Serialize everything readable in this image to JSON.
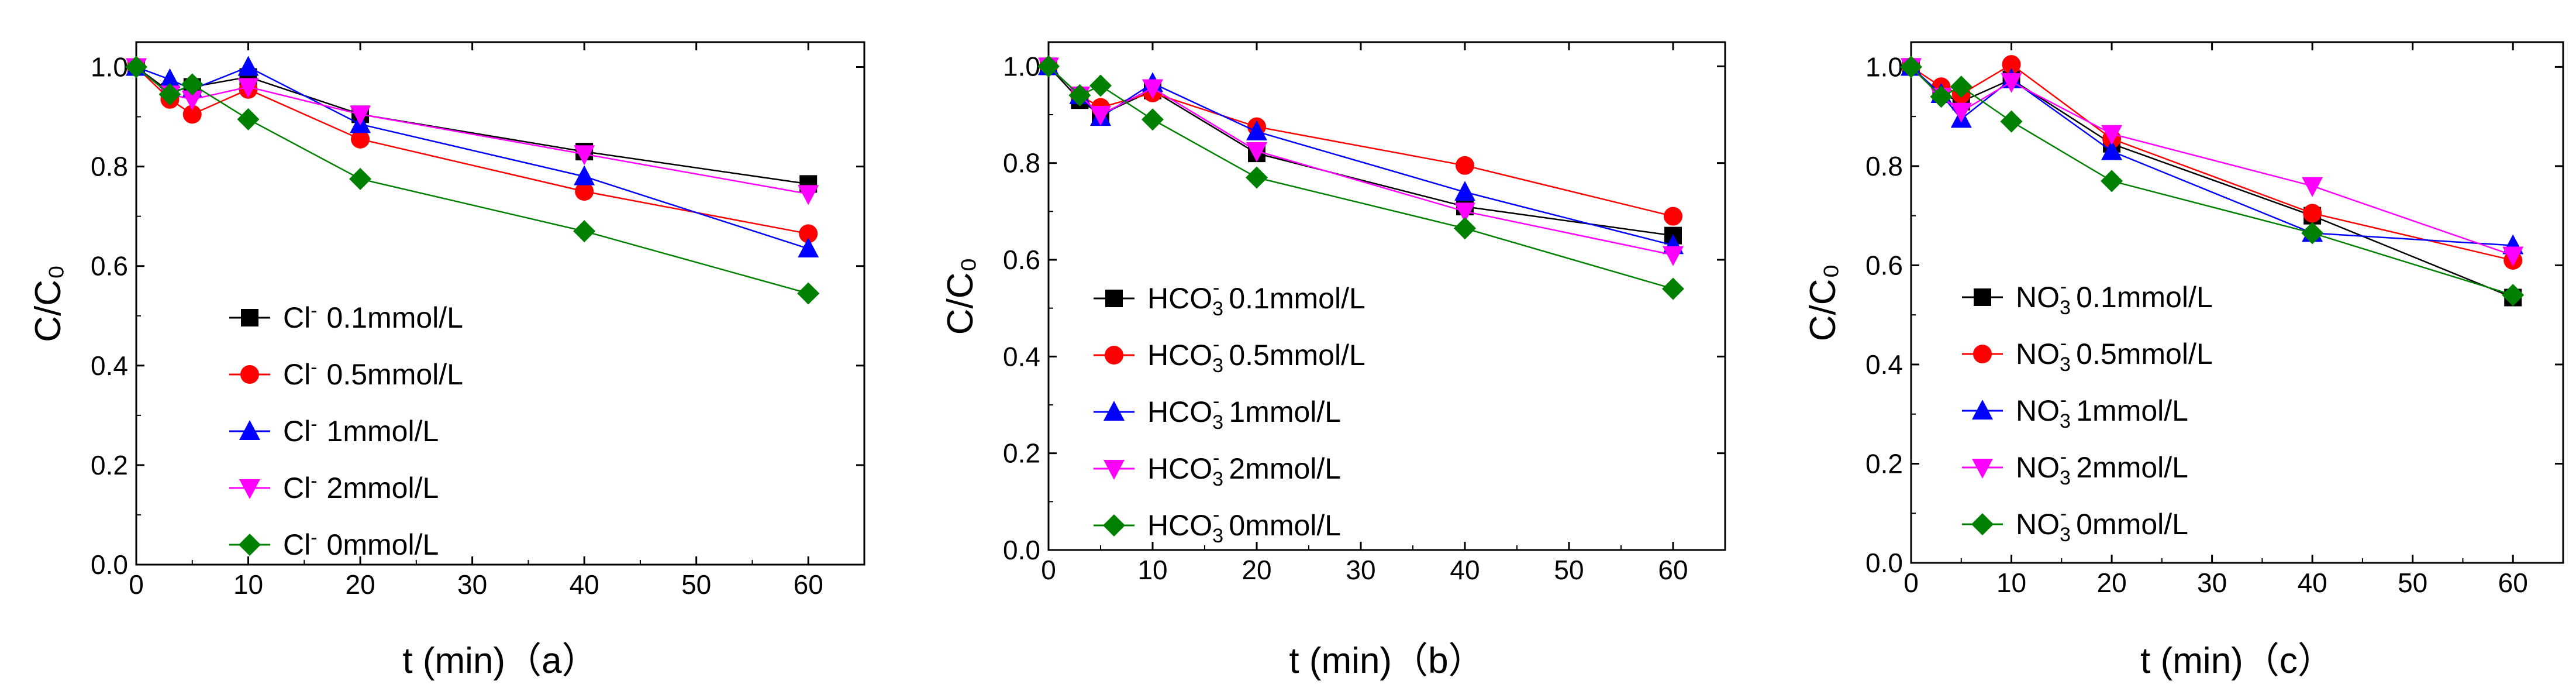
{
  "chart_data": [
    {
      "type": "line",
      "panel": "a",
      "xlabel": "t (min)（a）",
      "ylabel": "C/C₀",
      "xlim": [
        0,
        65
      ],
      "ylim": [
        0.0,
        1.05
      ],
      "xticks": [
        0,
        10,
        20,
        30,
        40,
        50,
        60
      ],
      "yticks": [
        0.0,
        0.2,
        0.4,
        0.6,
        0.8,
        1.0
      ],
      "xtick_labels": [
        "0",
        "10",
        "20",
        "30",
        "40",
        "50",
        "60"
      ],
      "ytick_labels": [
        "0.0",
        "0.2",
        "0.4",
        "0.6",
        "0.8",
        "1.0"
      ],
      "legend_position": "bottom-left",
      "ion_base": "Cl",
      "ion_sup": "-",
      "ion_sub": "",
      "x": [
        0,
        3,
        5,
        10,
        20,
        40,
        60
      ],
      "series": [
        {
          "name": "Cl⁻ 0.1mmol/L",
          "conc": "0.1mmol/L",
          "color": "#000000",
          "marker": "square",
          "values": [
            1.0,
            0.95,
            0.96,
            0.98,
            0.905,
            0.83,
            0.765
          ]
        },
        {
          "name": "Cl⁻ 0.5mmol/L",
          "conc": "0.5mmol/L",
          "color": "#ff0000",
          "marker": "circle",
          "values": [
            1.0,
            0.935,
            0.905,
            0.955,
            0.855,
            0.75,
            0.665
          ]
        },
        {
          "name": "Cl⁻ 1mmol/L",
          "conc": "1mmol/L",
          "color": "#0000ff",
          "marker": "triangle-up",
          "values": [
            1.0,
            0.975,
            0.955,
            1.0,
            0.885,
            0.78,
            0.635
          ]
        },
        {
          "name": "Cl⁻ 2mmol/L",
          "conc": "2mmol/L",
          "color": "#ff00ff",
          "marker": "triangle-down",
          "values": [
            1.0,
            0.945,
            0.935,
            0.96,
            0.905,
            0.825,
            0.745
          ]
        },
        {
          "name": "Cl⁻ 0mmol/L",
          "conc": "0mmol/L",
          "color": "#008000",
          "marker": "diamond",
          "values": [
            1.0,
            0.945,
            0.965,
            0.895,
            0.775,
            0.67,
            0.545
          ]
        }
      ]
    },
    {
      "type": "line",
      "panel": "b",
      "xlabel": "t (min)（b）",
      "ylabel": "C/C₀",
      "xlim": [
        0,
        65
      ],
      "ylim": [
        0.0,
        1.05
      ],
      "xticks": [
        0,
        10,
        20,
        30,
        40,
        50,
        60
      ],
      "yticks": [
        0.0,
        0.2,
        0.4,
        0.6,
        0.8,
        1.0
      ],
      "xtick_labels": [
        "0",
        "10",
        "20",
        "30",
        "40",
        "50",
        "60"
      ],
      "ytick_labels": [
        "0.0",
        "0.2",
        "0.4",
        "0.6",
        "0.8",
        "1.0"
      ],
      "legend_position": "bottom-left",
      "ion_base": "HCO",
      "ion_sup": "-",
      "ion_sub": "3",
      "x": [
        0,
        3,
        5,
        10,
        20,
        40,
        60
      ],
      "series": [
        {
          "name": "HCO₃⁻ 0.1mmol/L",
          "conc": "0.1mmol/L",
          "color": "#000000",
          "marker": "square",
          "values": [
            1.0,
            0.93,
            0.9,
            0.95,
            0.82,
            0.71,
            0.65
          ]
        },
        {
          "name": "HCO₃⁻ 0.5mmol/L",
          "conc": "0.5mmol/L",
          "color": "#ff0000",
          "marker": "circle",
          "values": [
            1.0,
            0.94,
            0.915,
            0.945,
            0.875,
            0.795,
            0.69
          ]
        },
        {
          "name": "HCO₃⁻ 1mmol/L",
          "conc": "1mmol/L",
          "color": "#0000ff",
          "marker": "triangle-up",
          "values": [
            1.0,
            0.94,
            0.895,
            0.965,
            0.865,
            0.74,
            0.63
          ]
        },
        {
          "name": "HCO₃⁻ 2mmol/L",
          "conc": "2mmol/L",
          "color": "#ff00ff",
          "marker": "triangle-down",
          "values": [
            1.0,
            0.94,
            0.9,
            0.955,
            0.825,
            0.7,
            0.61
          ]
        },
        {
          "name": "HCO₃⁻ 0mmol/L",
          "conc": "0mmol/L",
          "color": "#008000",
          "marker": "diamond",
          "values": [
            1.0,
            0.94,
            0.96,
            0.89,
            0.77,
            0.665,
            0.54
          ]
        }
      ]
    },
    {
      "type": "line",
      "panel": "c",
      "xlabel": "t (min)（c）",
      "ylabel": "C/C₀",
      "xlim": [
        0,
        65
      ],
      "ylim": [
        0.0,
        1.05
      ],
      "xticks": [
        0,
        10,
        20,
        30,
        40,
        50,
        60
      ],
      "yticks": [
        0.0,
        0.2,
        0.4,
        0.6,
        0.8,
        1.0
      ],
      "xtick_labels": [
        "0",
        "10",
        "20",
        "30",
        "40",
        "50",
        "60"
      ],
      "ytick_labels": [
        "0.0",
        "0.2",
        "0.4",
        "0.6",
        "0.8",
        "1.0"
      ],
      "legend_position": "bottom-left",
      "ion_base": "NO",
      "ion_sup": "-",
      "ion_sub": "3",
      "x": [
        0,
        3,
        5,
        10,
        20,
        40,
        60
      ],
      "series": [
        {
          "name": "NO₃⁻ 0.1mmol/L",
          "conc": "0.1mmol/L",
          "color": "#000000",
          "marker": "square",
          "values": [
            1.0,
            0.945,
            0.93,
            0.975,
            0.845,
            0.7,
            0.535
          ]
        },
        {
          "name": "NO₃⁻ 0.5mmol/L",
          "conc": "0.5mmol/L",
          "color": "#ff0000",
          "marker": "circle",
          "values": [
            1.0,
            0.96,
            0.945,
            1.005,
            0.855,
            0.705,
            0.61
          ]
        },
        {
          "name": "NO₃⁻ 1mmol/L",
          "conc": "1mmol/L",
          "color": "#0000ff",
          "marker": "triangle-up",
          "values": [
            1.0,
            0.945,
            0.895,
            0.975,
            0.83,
            0.665,
            0.64
          ]
        },
        {
          "name": "NO₃⁻ 2mmol/L",
          "conc": "2mmol/L",
          "color": "#ff00ff",
          "marker": "triangle-down",
          "values": [
            1.0,
            0.94,
            0.91,
            0.97,
            0.865,
            0.76,
            0.62
          ]
        },
        {
          "name": "NO₃⁻ 0mmol/L",
          "conc": "0mmol/L",
          "color": "#008000",
          "marker": "diamond",
          "values": [
            1.0,
            0.94,
            0.96,
            0.89,
            0.77,
            0.665,
            0.54
          ]
        }
      ]
    }
  ]
}
